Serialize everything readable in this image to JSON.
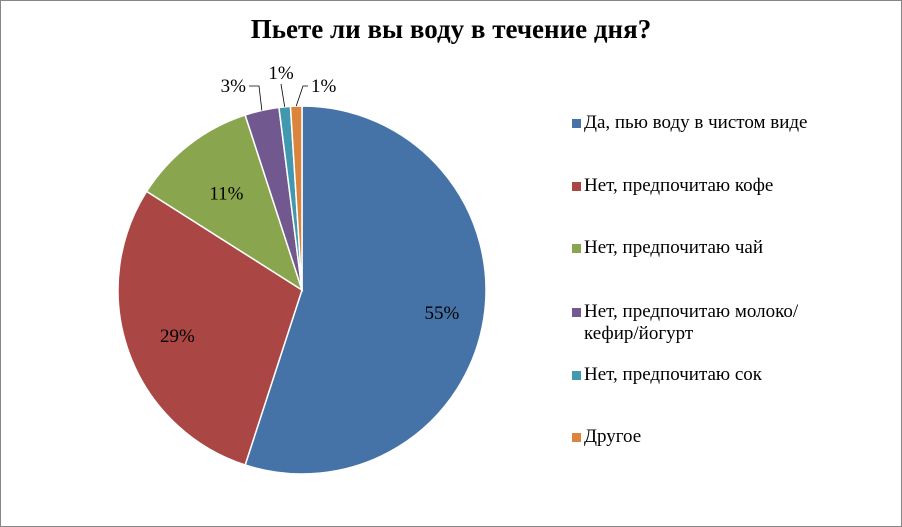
{
  "chart_data": {
    "type": "pie",
    "title": "Пьете ли вы воду в течение дня?",
    "categories": [
      "Да, пью воду в чистом виде",
      "Нет, предпочитаю кофе",
      "Нет, предпочитаю чай",
      "Нет, предпочитаю молоко/кефир/йогурт",
      "Нет, предпочитаю сок",
      "Другое"
    ],
    "values": [
      55,
      29,
      11,
      3,
      1,
      1
    ],
    "data_labels": [
      "55%",
      "29%",
      "11%",
      "3%",
      "1%",
      "1%"
    ],
    "colors": [
      "#4572A7",
      "#AA4643",
      "#89A54E",
      "#71588F",
      "#4198AF",
      "#DB843D"
    ],
    "legend_position": "right"
  }
}
